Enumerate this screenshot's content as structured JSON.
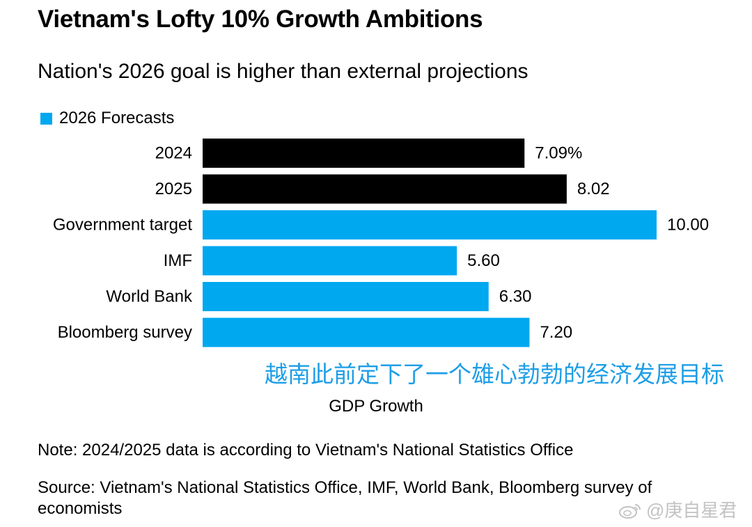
{
  "title": "Vietnam's Lofty 10% Growth Ambitions",
  "subtitle": "Nation's 2026 goal is higher than external projections",
  "legend": {
    "label": "2026 Forecasts",
    "color": "#00a8f0"
  },
  "colors": {
    "actual": "#000000",
    "forecast": "#00a8f0",
    "caption": "#1d9ee6"
  },
  "caption": "越南此前定下了一个雄心勃勃的经济发展目标",
  "note": "Note: 2024/2025 data is according to Vietnam's National Statistics Office",
  "source": "Source: Vietnam's National Statistics Office, IMF, World Bank, Bloomberg survey of economists",
  "watermark": {
    "text": "@庚自星君"
  },
  "chart_data": {
    "type": "bar",
    "orientation": "horizontal",
    "title": "Vietnam's Lofty 10% Growth Ambitions",
    "subtitle": "Nation's 2026 goal is higher than external projections",
    "xlabel": "GDP Growth",
    "ylabel": "",
    "xlim": [
      0,
      10
    ],
    "grid": false,
    "legend": {
      "entries": [
        "2026 Forecasts"
      ],
      "position": "top-left"
    },
    "categories": [
      "2024",
      "2025",
      "Government target",
      "IMF",
      "World Bank",
      "Bloomberg survey"
    ],
    "values": [
      7.09,
      8.02,
      10.0,
      5.6,
      6.3,
      7.2
    ],
    "value_labels": [
      "7.09%",
      "8.02",
      "10.00",
      "5.60",
      "6.30",
      "7.20"
    ],
    "group": [
      "actual",
      "actual",
      "forecast",
      "forecast",
      "forecast",
      "forecast"
    ]
  }
}
